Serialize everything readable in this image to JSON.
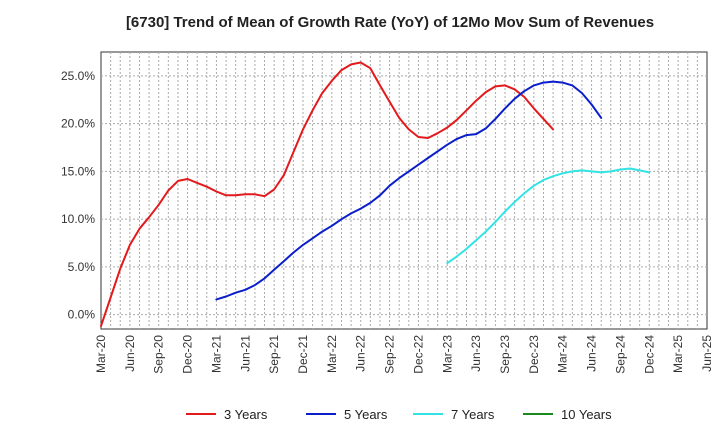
{
  "chart_data": {
    "type": "line",
    "title": "[6730]  Trend of Mean of Growth Rate (YoY) of 12Mo Mov Sum of Revenues",
    "xlabel": "",
    "ylabel": "",
    "ylim": [
      -1.5,
      27.5
    ],
    "y_ticks": [
      "0.0%",
      "5.0%",
      "10.0%",
      "15.0%",
      "20.0%",
      "25.0%"
    ],
    "y_tick_values": [
      0,
      5,
      10,
      15,
      20,
      25
    ],
    "x_ticks": [
      "Mar-20",
      "Jun-20",
      "Sep-20",
      "Dec-20",
      "Mar-21",
      "Jun-21",
      "Sep-21",
      "Dec-21",
      "Mar-22",
      "Jun-22",
      "Sep-22",
      "Dec-22",
      "Mar-23",
      "Jun-23",
      "Sep-23",
      "Dec-23",
      "Mar-24",
      "Jun-24",
      "Sep-24",
      "Dec-24",
      "Mar-25",
      "Jun-25"
    ],
    "grid": true,
    "legend_position": "bottom",
    "series": [
      {
        "name": "3 Years",
        "color": "#e31a1c",
        "start_index": 0,
        "values": [
          -1.2,
          1.8,
          4.8,
          7.3,
          9.0,
          10.2,
          11.5,
          13.0,
          14.0,
          14.2,
          13.8,
          13.4,
          12.9,
          12.5,
          12.5,
          12.6,
          12.6,
          12.4,
          13.1,
          14.6,
          17.0,
          19.4,
          21.4,
          23.2,
          24.5,
          25.6,
          26.2,
          26.4,
          25.8,
          24.0,
          22.3,
          20.6,
          19.4,
          18.6,
          18.5,
          19.0,
          19.6,
          20.4,
          21.4,
          22.4,
          23.3,
          23.9,
          24.0,
          23.6,
          22.8,
          21.6,
          20.5,
          19.4
        ]
      },
      {
        "name": "5 Years",
        "color": "#0a1ecc",
        "start_index": 12,
        "values": [
          1.6,
          1.9,
          2.3,
          2.6,
          3.1,
          3.8,
          4.7,
          5.6,
          6.5,
          7.3,
          8.0,
          8.7,
          9.3,
          10.0,
          10.6,
          11.1,
          11.7,
          12.5,
          13.5,
          14.3,
          15.0,
          15.7,
          16.4,
          17.1,
          17.8,
          18.4,
          18.8,
          18.9,
          19.5,
          20.5,
          21.6,
          22.6,
          23.4,
          24.0,
          24.3,
          24.4,
          24.3,
          24.0,
          23.2,
          22.0,
          20.6
        ]
      },
      {
        "name": "7 Years",
        "color": "#33e3e3",
        "start_index": 36,
        "values": [
          5.4,
          6.1,
          6.9,
          7.8,
          8.7,
          9.7,
          10.8,
          11.8,
          12.7,
          13.5,
          14.1,
          14.5,
          14.8,
          15.0,
          15.1,
          15.0,
          14.9,
          15.0,
          15.2,
          15.3,
          15.1,
          14.9
        ]
      },
      {
        "name": "10 Years",
        "color": "#1a8a1a",
        "start_index": 0,
        "values": []
      }
    ]
  }
}
